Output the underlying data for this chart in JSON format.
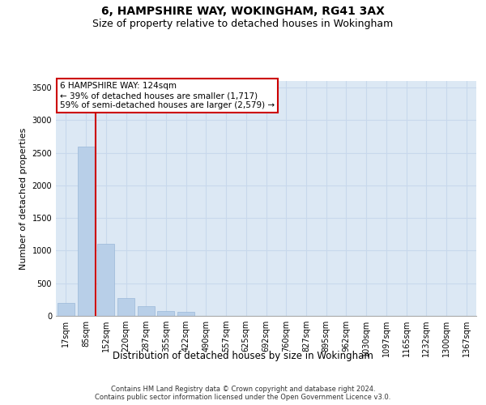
{
  "title": "6, HAMPSHIRE WAY, WOKINGHAM, RG41 3AX",
  "subtitle": "Size of property relative to detached houses in Wokingham",
  "xlabel": "Distribution of detached houses by size in Wokingham",
  "ylabel": "Number of detached properties",
  "categories": [
    "17sqm",
    "85sqm",
    "152sqm",
    "220sqm",
    "287sqm",
    "355sqm",
    "422sqm",
    "490sqm",
    "557sqm",
    "625sqm",
    "692sqm",
    "760sqm",
    "827sqm",
    "895sqm",
    "962sqm",
    "1030sqm",
    "1097sqm",
    "1165sqm",
    "1232sqm",
    "1300sqm",
    "1367sqm"
  ],
  "values": [
    200,
    2600,
    1100,
    270,
    155,
    80,
    60,
    0,
    0,
    0,
    0,
    0,
    0,
    0,
    0,
    0,
    0,
    0,
    0,
    0,
    0
  ],
  "bar_color": "#b8cfe8",
  "bar_edge_color": "#9ab8d8",
  "grid_color": "#c8d8ec",
  "background_color": "#dce8f4",
  "vline_color": "#cc0000",
  "annotation_text": "6 HAMPSHIRE WAY: 124sqm\n← 39% of detached houses are smaller (1,717)\n59% of semi-detached houses are larger (2,579) →",
  "annotation_box_color": "#ffffff",
  "annotation_box_edge": "#cc0000",
  "ylim": [
    0,
    3600
  ],
  "yticks": [
    0,
    500,
    1000,
    1500,
    2000,
    2500,
    3000,
    3500
  ],
  "footer": "Contains HM Land Registry data © Crown copyright and database right 2024.\nContains public sector information licensed under the Open Government Licence v3.0.",
  "title_fontsize": 10,
  "subtitle_fontsize": 9,
  "tick_fontsize": 7,
  "ylabel_fontsize": 8,
  "xlabel_fontsize": 8.5,
  "annotation_fontsize": 7.5,
  "footer_fontsize": 6
}
